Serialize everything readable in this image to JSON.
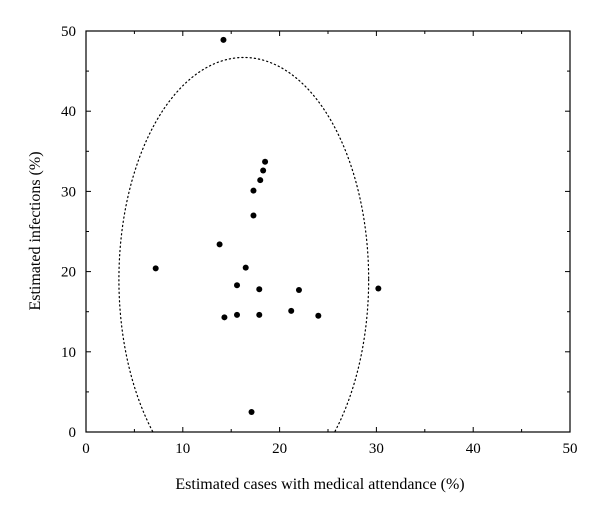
{
  "chart_data": {
    "type": "scatter",
    "title": "",
    "xlabel": "Estimated cases with medical attendance (%)",
    "ylabel": "Estimated infections (%)",
    "xlim": [
      0,
      50
    ],
    "ylim": [
      0,
      50
    ],
    "x_ticks": [
      0,
      10,
      20,
      30,
      40,
      50
    ],
    "y_ticks": [
      0,
      10,
      20,
      30,
      40,
      50
    ],
    "grid": false,
    "legend": "none",
    "point_color": "#000000",
    "series": [
      {
        "points": [
          {
            "x": 14.2,
            "y": 48.9
          },
          {
            "x": 18.5,
            "y": 33.7
          },
          {
            "x": 18.3,
            "y": 32.6
          },
          {
            "x": 18.0,
            "y": 31.4
          },
          {
            "x": 17.3,
            "y": 30.1
          },
          {
            "x": 17.3,
            "y": 27.0
          },
          {
            "x": 13.8,
            "y": 23.4
          },
          {
            "x": 7.2,
            "y": 20.4
          },
          {
            "x": 16.5,
            "y": 20.5
          },
          {
            "x": 15.6,
            "y": 18.3
          },
          {
            "x": 17.9,
            "y": 17.8
          },
          {
            "x": 22.0,
            "y": 17.7
          },
          {
            "x": 30.2,
            "y": 17.9
          },
          {
            "x": 21.2,
            "y": 15.1
          },
          {
            "x": 24.0,
            "y": 14.5
          },
          {
            "x": 15.6,
            "y": 14.6
          },
          {
            "x": 17.9,
            "y": 14.6
          },
          {
            "x": 14.3,
            "y": 14.3
          },
          {
            "x": 17.1,
            "y": 2.5
          }
        ]
      }
    ],
    "annotations": [
      {
        "type": "dotted-ellipse",
        "cx": 16.3,
        "cy": 19.0,
        "rx": 12.9,
        "ry": 27.7
      }
    ]
  }
}
